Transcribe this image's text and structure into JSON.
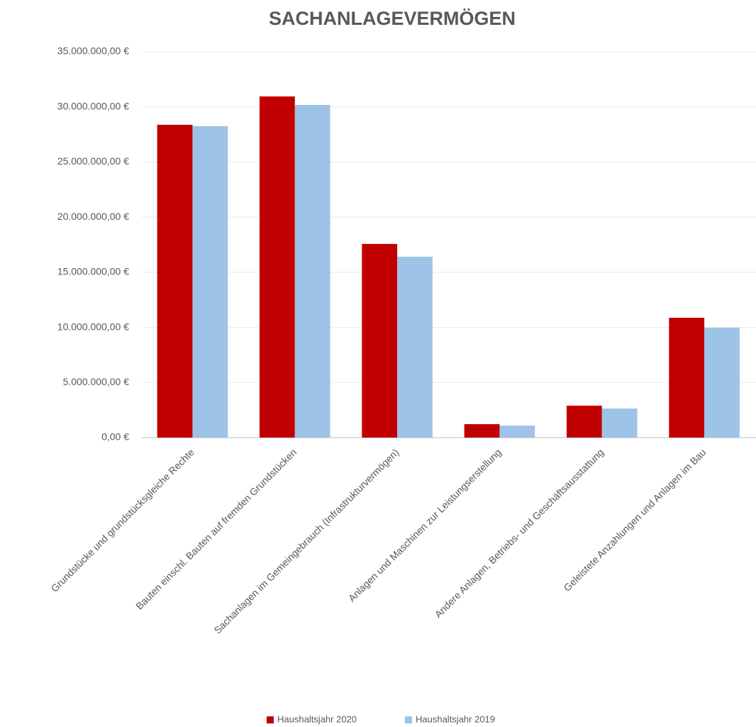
{
  "chart_data": {
    "type": "bar",
    "title": "SACHANLAGEVERMÖGEN",
    "categories": [
      "Grundstücke und grundstücksgleiche Rechte",
      "Bauten einschl. Bauten auf fremden Grundstücken",
      "Sachanlagen im Gemeingebrauch (Infrastrukturvermögen)",
      "Anlagen und Maschinen zur Leistungserstellung",
      "Andere Anlagen, Betriebs- und Geschäftsausstattung",
      "Geleistete Anzahlungen und Anlagen im Bau"
    ],
    "series": [
      {
        "name": "Haushaltsjahr 2020",
        "color": "#c00000",
        "values": [
          28380000,
          30950000,
          17570000,
          1220000,
          2900000,
          10870000
        ]
      },
      {
        "name": "Haushaltsjahr 2019",
        "color": "#9dc3e6",
        "values": [
          28250000,
          30180000,
          16410000,
          1090000,
          2640000,
          9970000
        ]
      }
    ],
    "ylim": [
      0,
      35000000
    ],
    "yticks": [
      {
        "value": 0,
        "label": "0,00 €"
      },
      {
        "value": 5000000,
        "label": "5.000.000,00 €"
      },
      {
        "value": 10000000,
        "label": "10.000.000,00 €"
      },
      {
        "value": 15000000,
        "label": "15.000.000,00 €"
      },
      {
        "value": 20000000,
        "label": "20.000.000,00 €"
      },
      {
        "value": 25000000,
        "label": "25.000.000,00 €"
      },
      {
        "value": 30000000,
        "label": "30.000.000,00 €"
      },
      {
        "value": 35000000,
        "label": "35.000.000,00 €"
      }
    ],
    "grid": true,
    "legend": "bottom"
  }
}
